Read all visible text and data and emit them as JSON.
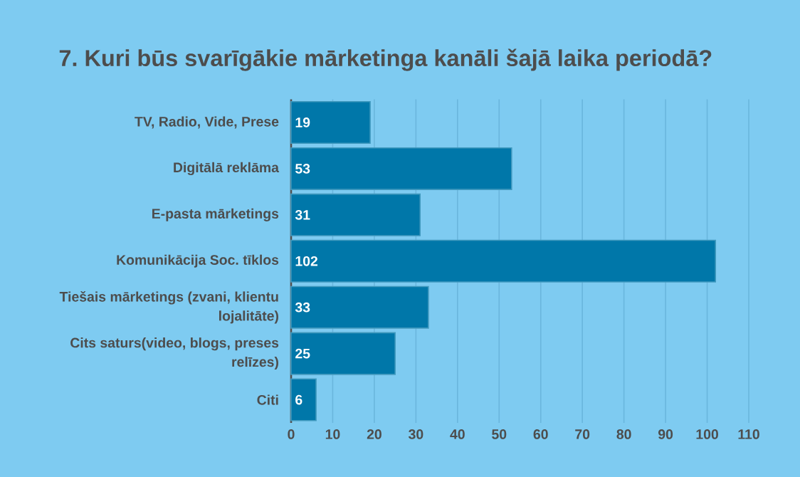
{
  "chart_data": {
    "type": "bar",
    "orientation": "horizontal",
    "title": "7. Kuri būs svarīgākie mārketinga kanāli šajā laika periodā?",
    "categories": [
      "TV, Radio, Vide, Prese",
      "Digitālā reklāma",
      "E-pasta mārketings",
      "Komunikācija Soc. tīklos",
      "Tiešais mārketings (zvani, klientu lojalitāte)",
      "Cits saturs(video, blogs, preses relīzes)",
      "Citi"
    ],
    "values": [
      19,
      53,
      31,
      102,
      33,
      25,
      6
    ],
    "color": "#0077a9",
    "xlim": [
      0,
      110
    ],
    "xticks": [
      0,
      10,
      20,
      30,
      40,
      50,
      60,
      70,
      80,
      90,
      100,
      110
    ],
    "grid": "x",
    "data_labels": true
  }
}
